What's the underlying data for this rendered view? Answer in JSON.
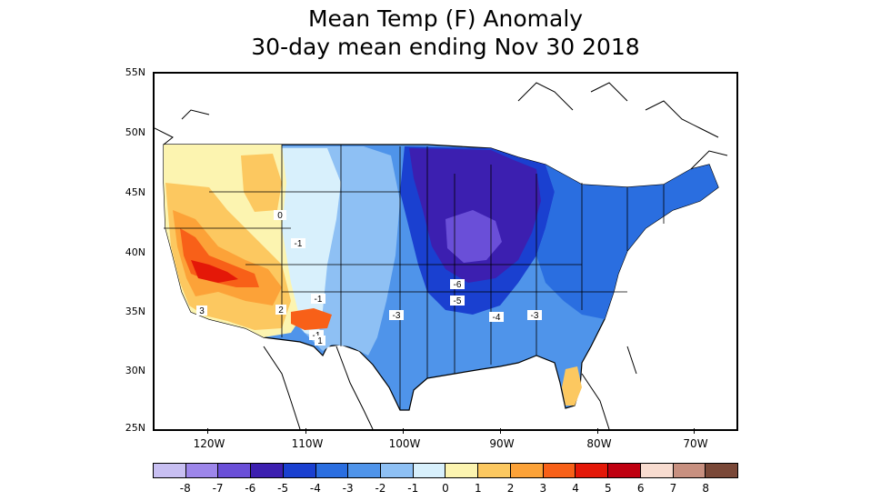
{
  "title": {
    "line1": "Mean Temp (F) Anomaly",
    "line2": "30-day mean ending Nov 30 2018"
  },
  "lat_labels": [
    "55N",
    "50N",
    "45N",
    "40N",
    "35N",
    "30N",
    "25N"
  ],
  "lon_labels": [
    "120W",
    "110W",
    "100W",
    "90W",
    "80W",
    "70W"
  ],
  "contour_labels": [
    "0",
    "-1",
    "-1",
    "-1",
    "1",
    "2",
    "3",
    "-6",
    "-5",
    "-3",
    "-4",
    "-3"
  ],
  "colorbar": {
    "labels": [
      "-8",
      "-7",
      "-6",
      "-5",
      "-4",
      "-3",
      "-2",
      "-1",
      "0",
      "1",
      "2",
      "3",
      "4",
      "5",
      "6",
      "7",
      "8"
    ],
    "colors": [
      "#c8bff2",
      "#9d86ea",
      "#6a4fd8",
      "#3c1fb0",
      "#1a40d0",
      "#2a6ee0",
      "#4f94ea",
      "#8ec0f4",
      "#d8f0fc",
      "#fcf4b0",
      "#fcc860",
      "#fca238",
      "#f86018",
      "#e41808",
      "#c00010",
      "#f8dcd0",
      "#c89080",
      "#7a4838"
    ]
  },
  "anomaly_colors": {
    "dark_purple": "#3c1fb0",
    "purple": "#6a4fd8",
    "dark_blue": "#1a40d0",
    "blue": "#2a6ee0",
    "mid_blue": "#4f94ea",
    "light_blue": "#8ec0f4",
    "pale_blue": "#d8f0fc",
    "pale_yellow": "#fcf4b0",
    "yellow_orange": "#fcc860",
    "orange": "#fca238",
    "red_orange": "#f86018",
    "red": "#e41808"
  }
}
